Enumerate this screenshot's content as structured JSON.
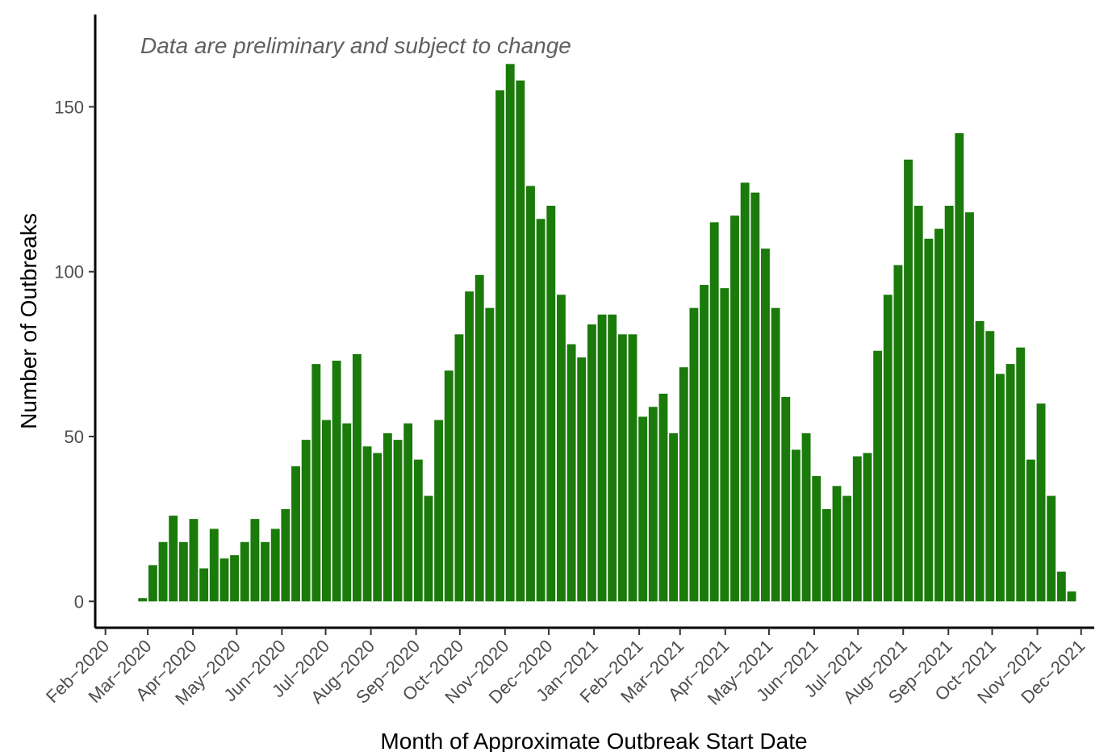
{
  "chart_data": {
    "type": "bar",
    "title": "",
    "annotation": "Data are preliminary and subject to change",
    "xlabel": "Month of Approximate Outbreak Start Date",
    "ylabel": "Number of Outbreaks",
    "bar_color": "#1a7a0a",
    "ylim": [
      -8,
      178
    ],
    "y_ticks": [
      0,
      50,
      100,
      150
    ],
    "x_ticks": [
      {
        "label": "Feb−2020",
        "date": "2020-02-01"
      },
      {
        "label": "Mar−2020",
        "date": "2020-03-01"
      },
      {
        "label": "Apr−2020",
        "date": "2020-04-01"
      },
      {
        "label": "May−2020",
        "date": "2020-05-01"
      },
      {
        "label": "Jun−2020",
        "date": "2020-06-01"
      },
      {
        "label": "Jul−2020",
        "date": "2020-07-01"
      },
      {
        "label": "Aug−2020",
        "date": "2020-08-01"
      },
      {
        "label": "Sep−2020",
        "date": "2020-09-01"
      },
      {
        "label": "Oct−2020",
        "date": "2020-10-01"
      },
      {
        "label": "Nov−2020",
        "date": "2020-11-01"
      },
      {
        "label": "Dec−2020",
        "date": "2020-12-01"
      },
      {
        "label": "Jan−2021",
        "date": "2021-01-01"
      },
      {
        "label": "Feb−2021",
        "date": "2021-02-01"
      },
      {
        "label": "Mar−2021",
        "date": "2021-03-01"
      },
      {
        "label": "Apr−2021",
        "date": "2021-04-01"
      },
      {
        "label": "May−2021",
        "date": "2021-05-01"
      },
      {
        "label": "Jun−2021",
        "date": "2021-06-01"
      },
      {
        "label": "Jul−2021",
        "date": "2021-07-01"
      },
      {
        "label": "Aug−2021",
        "date": "2021-08-01"
      },
      {
        "label": "Sep−2021",
        "date": "2021-09-01"
      },
      {
        "label": "Oct−2021",
        "date": "2021-10-01"
      },
      {
        "label": "Nov−2021",
        "date": "2021-11-01"
      },
      {
        "label": "Dec−2021",
        "date": "2021-12-01"
      }
    ],
    "xlim": [
      "2020-01-25",
      "2021-12-10"
    ],
    "grid": false,
    "legend": "none",
    "bars": [
      {
        "week_start": "2020-02-23",
        "value": 1
      },
      {
        "week_start": "2020-03-01",
        "value": 11
      },
      {
        "week_start": "2020-03-08",
        "value": 18
      },
      {
        "week_start": "2020-03-15",
        "value": 26
      },
      {
        "week_start": "2020-03-22",
        "value": 18
      },
      {
        "week_start": "2020-03-29",
        "value": 25
      },
      {
        "week_start": "2020-04-05",
        "value": 10
      },
      {
        "week_start": "2020-04-12",
        "value": 22
      },
      {
        "week_start": "2020-04-19",
        "value": 13
      },
      {
        "week_start": "2020-04-26",
        "value": 14
      },
      {
        "week_start": "2020-05-03",
        "value": 18
      },
      {
        "week_start": "2020-05-10",
        "value": 25
      },
      {
        "week_start": "2020-05-17",
        "value": 18
      },
      {
        "week_start": "2020-05-24",
        "value": 22
      },
      {
        "week_start": "2020-05-31",
        "value": 28
      },
      {
        "week_start": "2020-06-07",
        "value": 41
      },
      {
        "week_start": "2020-06-14",
        "value": 49
      },
      {
        "week_start": "2020-06-21",
        "value": 72
      },
      {
        "week_start": "2020-06-28",
        "value": 55
      },
      {
        "week_start": "2020-07-05",
        "value": 73
      },
      {
        "week_start": "2020-07-12",
        "value": 54
      },
      {
        "week_start": "2020-07-19",
        "value": 75
      },
      {
        "week_start": "2020-07-26",
        "value": 47
      },
      {
        "week_start": "2020-08-02",
        "value": 45
      },
      {
        "week_start": "2020-08-09",
        "value": 51
      },
      {
        "week_start": "2020-08-16",
        "value": 49
      },
      {
        "week_start": "2020-08-23",
        "value": 54
      },
      {
        "week_start": "2020-08-30",
        "value": 43
      },
      {
        "week_start": "2020-09-06",
        "value": 32
      },
      {
        "week_start": "2020-09-13",
        "value": 55
      },
      {
        "week_start": "2020-09-20",
        "value": 70
      },
      {
        "week_start": "2020-09-27",
        "value": 81
      },
      {
        "week_start": "2020-10-04",
        "value": 94
      },
      {
        "week_start": "2020-10-11",
        "value": 99
      },
      {
        "week_start": "2020-10-18",
        "value": 89
      },
      {
        "week_start": "2020-10-25",
        "value": 155
      },
      {
        "week_start": "2020-11-01",
        "value": 163
      },
      {
        "week_start": "2020-11-08",
        "value": 158
      },
      {
        "week_start": "2020-11-15",
        "value": 126
      },
      {
        "week_start": "2020-11-22",
        "value": 116
      },
      {
        "week_start": "2020-11-29",
        "value": 120
      },
      {
        "week_start": "2020-12-06",
        "value": 93
      },
      {
        "week_start": "2020-12-13",
        "value": 78
      },
      {
        "week_start": "2020-12-20",
        "value": 74
      },
      {
        "week_start": "2020-12-27",
        "value": 84
      },
      {
        "week_start": "2021-01-03",
        "value": 87
      },
      {
        "week_start": "2021-01-10",
        "value": 87
      },
      {
        "week_start": "2021-01-17",
        "value": 81
      },
      {
        "week_start": "2021-01-24",
        "value": 81
      },
      {
        "week_start": "2021-01-31",
        "value": 56
      },
      {
        "week_start": "2021-02-07",
        "value": 59
      },
      {
        "week_start": "2021-02-14",
        "value": 63
      },
      {
        "week_start": "2021-02-21",
        "value": 51
      },
      {
        "week_start": "2021-02-28",
        "value": 71
      },
      {
        "week_start": "2021-03-07",
        "value": 89
      },
      {
        "week_start": "2021-03-14",
        "value": 96
      },
      {
        "week_start": "2021-03-21",
        "value": 115
      },
      {
        "week_start": "2021-03-28",
        "value": 95
      },
      {
        "week_start": "2021-04-04",
        "value": 117
      },
      {
        "week_start": "2021-04-11",
        "value": 127
      },
      {
        "week_start": "2021-04-18",
        "value": 124
      },
      {
        "week_start": "2021-04-25",
        "value": 107
      },
      {
        "week_start": "2021-05-02",
        "value": 89
      },
      {
        "week_start": "2021-05-09",
        "value": 62
      },
      {
        "week_start": "2021-05-16",
        "value": 46
      },
      {
        "week_start": "2021-05-23",
        "value": 51
      },
      {
        "week_start": "2021-05-30",
        "value": 38
      },
      {
        "week_start": "2021-06-06",
        "value": 28
      },
      {
        "week_start": "2021-06-13",
        "value": 35
      },
      {
        "week_start": "2021-06-20",
        "value": 32
      },
      {
        "week_start": "2021-06-27",
        "value": 44
      },
      {
        "week_start": "2021-07-04",
        "value": 45
      },
      {
        "week_start": "2021-07-11",
        "value": 76
      },
      {
        "week_start": "2021-07-18",
        "value": 93
      },
      {
        "week_start": "2021-07-25",
        "value": 102
      },
      {
        "week_start": "2021-08-01",
        "value": 134
      },
      {
        "week_start": "2021-08-08",
        "value": 120
      },
      {
        "week_start": "2021-08-15",
        "value": 110
      },
      {
        "week_start": "2021-08-22",
        "value": 113
      },
      {
        "week_start": "2021-08-29",
        "value": 120
      },
      {
        "week_start": "2021-09-05",
        "value": 142
      },
      {
        "week_start": "2021-09-12",
        "value": 118
      },
      {
        "week_start": "2021-09-19",
        "value": 85
      },
      {
        "week_start": "2021-09-26",
        "value": 82
      },
      {
        "week_start": "2021-10-03",
        "value": 69
      },
      {
        "week_start": "2021-10-10",
        "value": 72
      },
      {
        "week_start": "2021-10-17",
        "value": 77
      },
      {
        "week_start": "2021-10-24",
        "value": 43
      },
      {
        "week_start": "2021-10-31",
        "value": 60
      },
      {
        "week_start": "2021-11-07",
        "value": 32
      },
      {
        "week_start": "2021-11-14",
        "value": 9
      },
      {
        "week_start": "2021-11-21",
        "value": 3
      }
    ]
  }
}
